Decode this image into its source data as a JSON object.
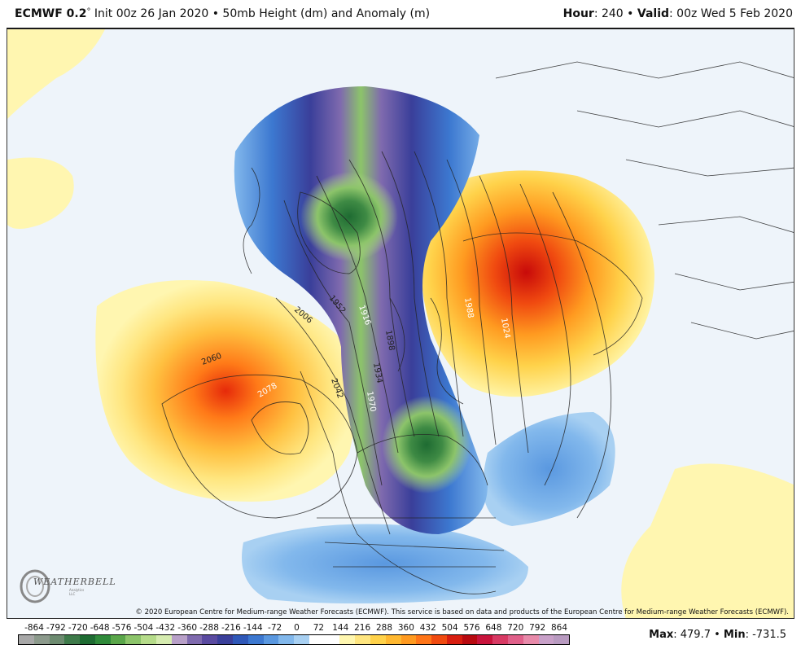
{
  "header": {
    "model": "ECMWF 0.2",
    "degree": "°",
    "init": " Init 00z 26 Jan 2020 • 50mb Height (dm) and Anomaly (m)",
    "hour_label": "Hour",
    "hour_value": ": 240 • ",
    "valid_label": "Valid",
    "valid_value": ": 00z Wed 5 Feb 2020"
  },
  "copyright": "© 2020 European Centre for Medium-range Weather Forecasts (ECMWF). This service is based on data and products of the European Centre for Medium-range Weather Forecasts (ECMWF).",
  "logo": {
    "text": "WEATHERBELL",
    "sub": "Analytics LLC"
  },
  "contour_labels": [
    "1952",
    "1916",
    "1898",
    "1934",
    "1970",
    "2006",
    "2060",
    "2078",
    "2042",
    "1988",
    "1024"
  ],
  "colorbar": {
    "ticks": [
      "-864",
      "-792",
      "-720",
      "-648",
      "-576",
      "-504",
      "-432",
      "-360",
      "-288",
      "-216",
      "-144",
      "-72",
      "0",
      "72",
      "144",
      "216",
      "288",
      "360",
      "432",
      "504",
      "576",
      "648",
      "720",
      "792",
      "864"
    ],
    "colors": [
      "#a8a8a8",
      "#8c9a8c",
      "#6d8b70",
      "#3e7a4a",
      "#1e6b32",
      "#2f8a3a",
      "#5aa64a",
      "#8cc46a",
      "#b6dc8a",
      "#d6ecb0",
      "#b8a0c8",
      "#7f6aae",
      "#5a4aa0",
      "#3a3f9a",
      "#2f58b8",
      "#3c78d0",
      "#5a98e0",
      "#82b8ec",
      "#a8d0f2",
      "#ffffff",
      "#ffffff",
      "#fff7b0",
      "#ffe680",
      "#ffd24a",
      "#ffb830",
      "#ff9a20",
      "#ff7518",
      "#f04a10",
      "#d81e10",
      "#b80a10",
      "#c8143c",
      "#d83a64",
      "#e0608a",
      "#e88aaa",
      "#c8a0c8",
      "#b89ac0"
    ]
  },
  "stats": {
    "max_label": "Max",
    "max_value": ": 479.7 • ",
    "min_label": "Min",
    "min_value": ": -731.5"
  }
}
